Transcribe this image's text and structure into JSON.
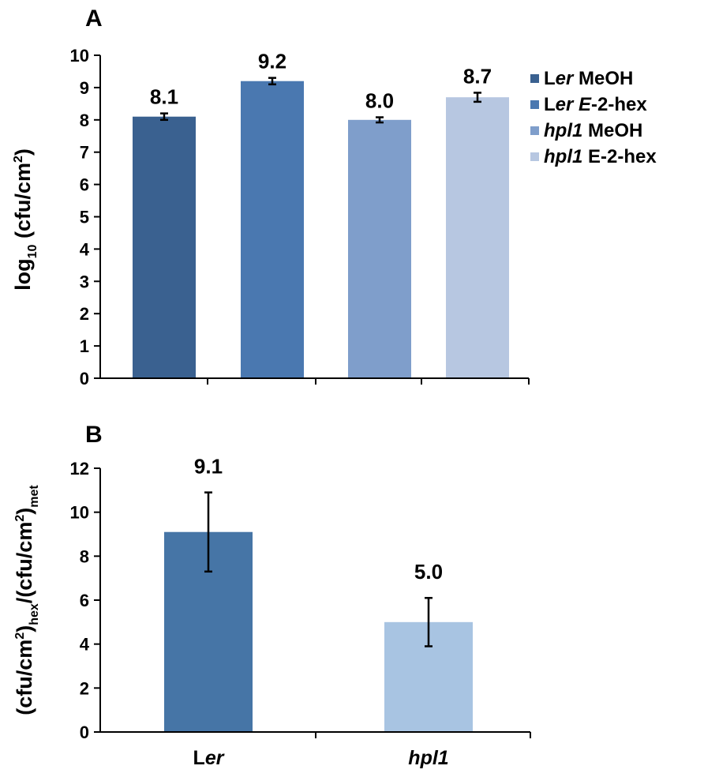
{
  "colors": {
    "bar_a": [
      "#3a6190",
      "#4a78b0",
      "#7f9ecb",
      "#b7c7e1"
    ],
    "bar_b": [
      "#4675a6",
      "#a8c4e2"
    ],
    "axis": "#000000"
  },
  "chart_data": [
    {
      "panel": "A",
      "type": "bar",
      "ylabel_main": "log",
      "ylabel_sub": "10",
      "ylabel_rest": " (cfu/cm",
      "ylabel_sup": "2",
      "ylabel_end": ")",
      "ylim": [
        0,
        10
      ],
      "yticks": [
        "0",
        "1",
        "2",
        "3",
        "4",
        "5",
        "6",
        "7",
        "8",
        "9",
        "10"
      ],
      "series": [
        {
          "name": "Ler MeOH",
          "value": 8.1,
          "label": "8.1",
          "error": 0.1
        },
        {
          "name": "Ler E-2-hex",
          "value": 9.2,
          "label": "9.2",
          "error": 0.1
        },
        {
          "name": "hpl1 MeOH",
          "value": 8.0,
          "label": "8.0",
          "error": 0.08
        },
        {
          "name": "hpl1 E-2-hex",
          "value": 8.7,
          "label": "8.7",
          "error": 0.14
        }
      ],
      "legend": [
        {
          "parts": [
            {
              "t": "L",
              "i": false
            },
            {
              "t": "er",
              "i": true
            },
            {
              "t": " MeOH",
              "i": false
            }
          ]
        },
        {
          "parts": [
            {
              "t": "L",
              "i": false
            },
            {
              "t": "er",
              "i": true
            },
            {
              "t": " ",
              "i": false
            },
            {
              "t": "E",
              "i": true
            },
            {
              "t": "-2-hex",
              "i": false
            }
          ]
        },
        {
          "parts": [
            {
              "t": "hpl1",
              "i": true
            },
            {
              "t": " MeOH",
              "i": false
            }
          ]
        },
        {
          "parts": [
            {
              "t": "hpl1",
              "i": true
            },
            {
              "t": " E-2-hex",
              "i": false
            }
          ]
        }
      ],
      "legend_position": "right"
    },
    {
      "panel": "B",
      "type": "bar",
      "ylabel_parts": [
        "(cfu/cm",
        "2",
        ")",
        "hex",
        "/(cfu/cm",
        "2",
        ")",
        "met"
      ],
      "ylim": [
        0,
        12
      ],
      "yticks": [
        "0",
        "2",
        "4",
        "6",
        "8",
        "10",
        "12"
      ],
      "categories": [
        {
          "parts": [
            {
              "t": "L",
              "i": false
            },
            {
              "t": "er",
              "i": true
            }
          ]
        },
        {
          "parts": [
            {
              "t": "hpl1",
              "i": true
            }
          ]
        }
      ],
      "values": [
        9.1,
        5.0
      ],
      "labels": [
        "9.1",
        "5.0"
      ],
      "errors": [
        1.8,
        1.1
      ]
    }
  ]
}
